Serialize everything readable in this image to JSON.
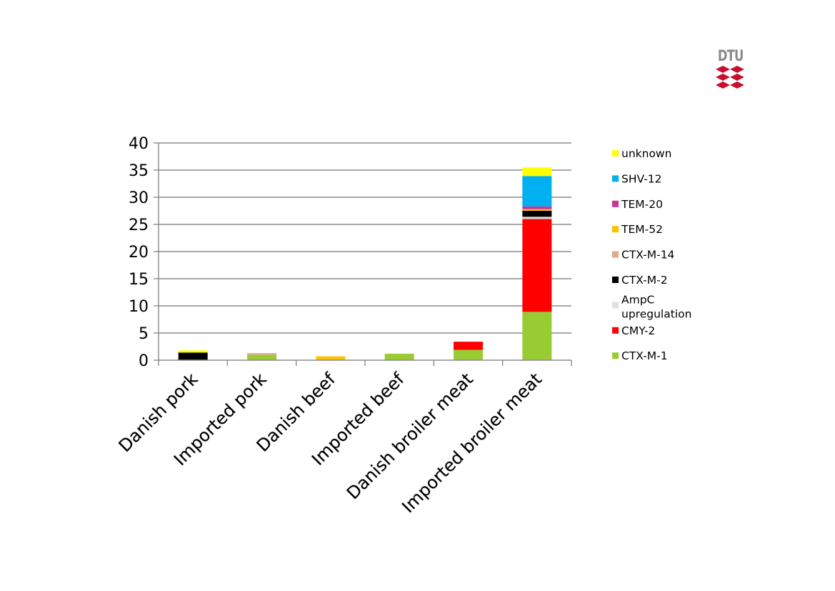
{
  "logo": {
    "text": "DTU",
    "color": "#c8102e"
  },
  "chart_data": {
    "type": "bar",
    "stacked": true,
    "categories": [
      "Danish pork",
      "Imported pork",
      "Danish beef",
      "Imported beef",
      "Danish broiler meat",
      "Imported broiler meat"
    ],
    "ylim": [
      0,
      40
    ],
    "yticks": [
      0,
      5,
      10,
      15,
      20,
      25,
      30,
      35,
      40
    ],
    "grid": true,
    "legend_position": "right",
    "series": [
      {
        "name": "CTX-M-1",
        "color": "#99cc33",
        "values": [
          0,
          1,
          0,
          1.2,
          1.9,
          8.9
        ]
      },
      {
        "name": "CMY-2",
        "color": "#ff0000",
        "values": [
          0,
          0,
          0,
          0,
          1.5,
          17.1
        ]
      },
      {
        "name": "AmpC upregulation",
        "color": "#e0e0e0",
        "values": [
          0,
          0,
          0,
          0,
          0,
          0.4
        ]
      },
      {
        "name": "CTX-M-2",
        "color": "#000000",
        "values": [
          1.4,
          0,
          0,
          0,
          0,
          1.1
        ]
      },
      {
        "name": "CTX-M-14",
        "color": "#e2a88c",
        "values": [
          0,
          0.3,
          0,
          0,
          0,
          0
        ]
      },
      {
        "name": "TEM-52",
        "color": "#ffc000",
        "values": [
          0,
          0,
          0.7,
          0,
          0,
          0.3
        ]
      },
      {
        "name": "TEM-20",
        "color": "#cc3399",
        "values": [
          0,
          0,
          0,
          0,
          0,
          0.5
        ]
      },
      {
        "name": "SHV-12",
        "color": "#00b0f0",
        "values": [
          0,
          0,
          0,
          0,
          0,
          5.6
        ]
      },
      {
        "name": "unknown",
        "color": "#ffff00",
        "values": [
          0.4,
          0,
          0,
          0,
          0,
          1.6
        ]
      }
    ]
  }
}
